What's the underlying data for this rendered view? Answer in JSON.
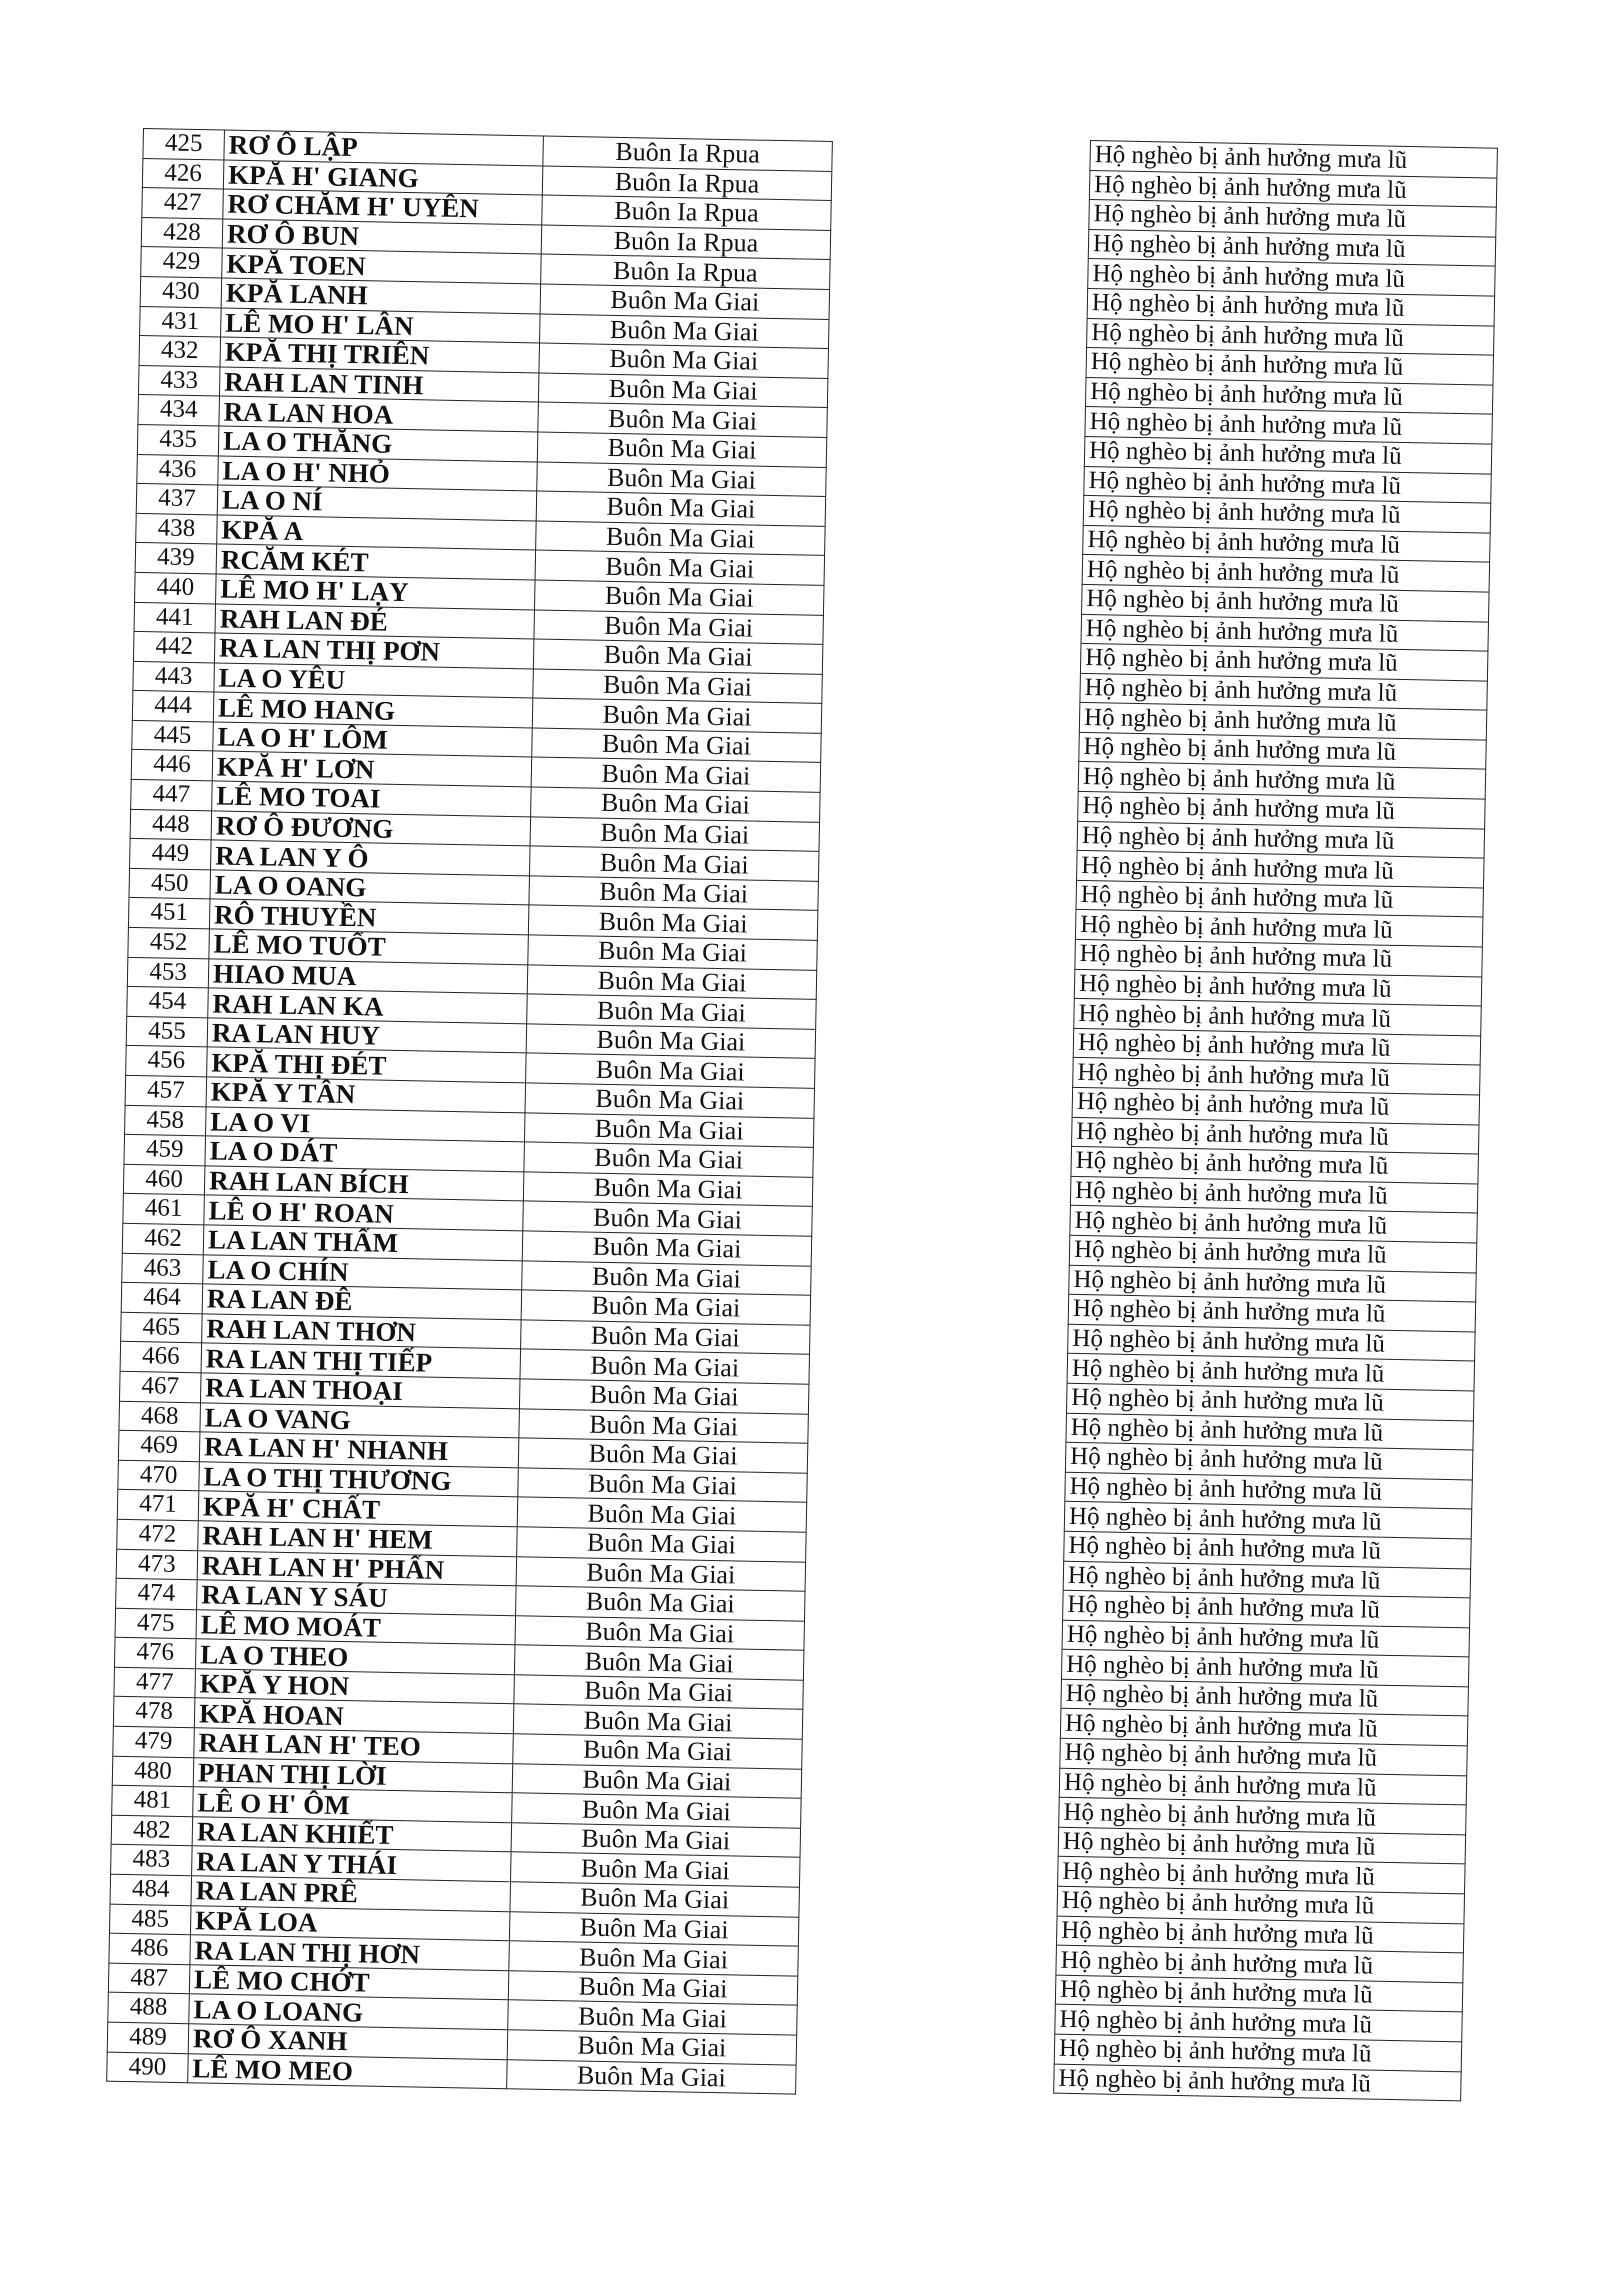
{
  "rows": [
    {
      "no": "425",
      "name": "RƠ Ô LẬP",
      "village": "Buôn Ia Rpua"
    },
    {
      "no": "426",
      "name": "KPĂ H' GIANG",
      "village": "Buôn Ia Rpua"
    },
    {
      "no": "427",
      "name": "RƠ CHĂM H' UYÊN",
      "village": "Buôn Ia Rpua"
    },
    {
      "no": "428",
      "name": "RƠ Ô BUN",
      "village": "Buôn Ia Rpua"
    },
    {
      "no": "429",
      "name": "KPĂ TOEN",
      "village": "Buôn Ia Rpua"
    },
    {
      "no": "430",
      "name": "KPĂ LANH",
      "village": "Buôn Ma Giai"
    },
    {
      "no": "431",
      "name": "LÊ MO H' LÂN",
      "village": "Buôn Ma Giai"
    },
    {
      "no": "432",
      "name": "KPĂ THỊ TRIÊN",
      "village": "Buôn Ma Giai"
    },
    {
      "no": "433",
      "name": "RAH LAN TINH",
      "village": "Buôn Ma Giai"
    },
    {
      "no": "434",
      "name": "RA LAN HOA",
      "village": "Buôn Ma Giai"
    },
    {
      "no": "435",
      "name": "LA O THĂNG",
      "village": "Buôn Ma Giai"
    },
    {
      "no": "436",
      "name": "LA O H' NHỎ",
      "village": "Buôn Ma Giai"
    },
    {
      "no": "437",
      "name": "LA O NÍ",
      "village": "Buôn Ma Giai"
    },
    {
      "no": "438",
      "name": "KPĂ A",
      "village": "Buôn Ma Giai"
    },
    {
      "no": "439",
      "name": "RCĂM KÉT",
      "village": "Buôn Ma Giai"
    },
    {
      "no": "440",
      "name": "LÊ MO H' LẠY",
      "village": "Buôn Ma Giai"
    },
    {
      "no": "441",
      "name": "RAH LAN ĐÉ",
      "village": "Buôn Ma Giai"
    },
    {
      "no": "442",
      "name": "RA LAN THỊ PƠN",
      "village": "Buôn Ma Giai"
    },
    {
      "no": "443",
      "name": "LA O YÊU",
      "village": "Buôn Ma Giai"
    },
    {
      "no": "444",
      "name": "LÊ MO HANG",
      "village": "Buôn Ma Giai"
    },
    {
      "no": "445",
      "name": "LA O H' LÔM",
      "village": "Buôn Ma Giai"
    },
    {
      "no": "446",
      "name": "KPĂ H' LƠN",
      "village": "Buôn Ma Giai"
    },
    {
      "no": "447",
      "name": "LÊ MO TOAI",
      "village": "Buôn Ma Giai"
    },
    {
      "no": "448",
      "name": "RƠ Ô ĐƯƠNG",
      "village": "Buôn Ma Giai"
    },
    {
      "no": "449",
      "name": "RA LAN Y Ô",
      "village": "Buôn Ma Giai"
    },
    {
      "no": "450",
      "name": "LA O OANG",
      "village": "Buôn Ma Giai"
    },
    {
      "no": "451",
      "name": "RÔ THUYỀN",
      "village": "Buôn Ma Giai"
    },
    {
      "no": "452",
      "name": "LÊ MO TUỐT",
      "village": "Buôn Ma Giai"
    },
    {
      "no": "453",
      "name": "HIAO MUA",
      "village": "Buôn Ma Giai"
    },
    {
      "no": "454",
      "name": "RAH LAN KA",
      "village": "Buôn Ma Giai"
    },
    {
      "no": "455",
      "name": "RA LAN HUY",
      "village": "Buôn Ma Giai"
    },
    {
      "no": "456",
      "name": "KPĂ THỊ ĐÉT",
      "village": "Buôn Ma Giai"
    },
    {
      "no": "457",
      "name": "KPĂ Y TÂN",
      "village": "Buôn Ma Giai"
    },
    {
      "no": "458",
      "name": "LA O VI",
      "village": "Buôn Ma Giai"
    },
    {
      "no": "459",
      "name": "LA O DÁT",
      "village": "Buôn Ma Giai"
    },
    {
      "no": "460",
      "name": "RAH LAN BÍCH",
      "village": "Buôn Ma Giai"
    },
    {
      "no": "461",
      "name": "LÊ O H' ROAN",
      "village": "Buôn Ma Giai"
    },
    {
      "no": "462",
      "name": "LA LAN THẨM",
      "village": "Buôn Ma Giai"
    },
    {
      "no": "463",
      "name": "LA O CHÍN",
      "village": "Buôn Ma Giai"
    },
    {
      "no": "464",
      "name": "RA LAN ĐÊ",
      "village": "Buôn Ma Giai"
    },
    {
      "no": "465",
      "name": "RAH LAN THƠN",
      "village": "Buôn Ma Giai"
    },
    {
      "no": "466",
      "name": "RA LAN THỊ TIẾP",
      "village": "Buôn Ma Giai"
    },
    {
      "no": "467",
      "name": "RA LAN THOẠI",
      "village": "Buôn Ma Giai"
    },
    {
      "no": "468",
      "name": "LA O VANG",
      "village": "Buôn Ma Giai"
    },
    {
      "no": "469",
      "name": "RA LAN H' NHANH",
      "village": "Buôn Ma Giai"
    },
    {
      "no": "470",
      "name": "LA O THỊ THƯƠNG",
      "village": "Buôn Ma Giai"
    },
    {
      "no": "471",
      "name": "KPĂ H' CHẤT",
      "village": "Buôn Ma Giai"
    },
    {
      "no": "472",
      "name": "RAH LAN H' HEM",
      "village": "Buôn Ma Giai"
    },
    {
      "no": "473",
      "name": "RAH LAN H' PHẤN",
      "village": "Buôn Ma Giai"
    },
    {
      "no": "474",
      "name": "RA LAN Y SÁU",
      "village": "Buôn Ma Giai"
    },
    {
      "no": "475",
      "name": "LÊ MO MOÁT",
      "village": "Buôn Ma Giai"
    },
    {
      "no": "476",
      "name": "LA O THEO",
      "village": "Buôn Ma Giai"
    },
    {
      "no": "477",
      "name": "KPĂ Y HON",
      "village": "Buôn Ma Giai"
    },
    {
      "no": "478",
      "name": "KPĂ HOAN",
      "village": "Buôn Ma Giai"
    },
    {
      "no": "479",
      "name": "RAH LAN H' TEO",
      "village": "Buôn Ma Giai"
    },
    {
      "no": "480",
      "name": "PHAN THỊ LỜI",
      "village": "Buôn Ma Giai"
    },
    {
      "no": "481",
      "name": "LÊ O H' ÔM",
      "village": "Buôn Ma Giai"
    },
    {
      "no": "482",
      "name": "RA LAN KHIẾT",
      "village": "Buôn Ma Giai"
    },
    {
      "no": "483",
      "name": "RA LAN Y THÁI",
      "village": "Buôn Ma Giai"
    },
    {
      "no": "484",
      "name": "RA LAN PRÊ",
      "village": "Buôn Ma Giai"
    },
    {
      "no": "485",
      "name": "KPĂ LOA",
      "village": "Buôn Ma Giai"
    },
    {
      "no": "486",
      "name": "RA LAN THỊ HƠN",
      "village": "Buôn Ma Giai"
    },
    {
      "no": "487",
      "name": "LÊ MO CHỚT",
      "village": "Buôn Ma Giai"
    },
    {
      "no": "488",
      "name": "LA O LOANG",
      "village": "Buôn Ma Giai"
    },
    {
      "no": "489",
      "name": "RƠ Ô XANH",
      "village": "Buôn Ma Giai"
    },
    {
      "no": "490",
      "name": "LÊ MO MEO",
      "village": "Buôn Ma Giai"
    }
  ],
  "status_column": [
    "Hộ nghèo bị ảnh hưởng mưa lũ",
    "Hộ nghèo bị ảnh hưởng mưa lũ",
    "Hộ nghèo bị ảnh hưởng mưa lũ",
    "Hộ nghèo bị ảnh hưởng mưa lũ",
    "Hộ nghèo bị ảnh hưởng mưa lũ",
    "Hộ nghèo bị ảnh hưởng mưa lũ",
    "Hộ nghèo bị ảnh hưởng mưa lũ",
    "Hộ nghèo bị ảnh hưởng mưa lũ",
    "Hộ nghèo bị ảnh hưởng mưa lũ",
    "Hộ nghèo bị ảnh hưởng mưa lũ",
    "Hộ nghèo bị ảnh hưởng mưa lũ",
    "Hộ nghèo bị ảnh hưởng mưa lũ",
    "Hộ nghèo bị ảnh hưởng mưa lũ",
    "Hộ nghèo bị ảnh hưởng mưa lũ",
    "Hộ nghèo bị ảnh hưởng mưa lũ",
    "Hộ nghèo bị ảnh hưởng mưa lũ",
    "Hộ nghèo bị ảnh hưởng mưa lũ",
    "Hộ nghèo bị ảnh hưởng mưa lũ",
    "Hộ nghèo bị ảnh hưởng mưa lũ",
    "Hộ nghèo bị ảnh hưởng mưa lũ",
    "Hộ nghèo bị ảnh hưởng mưa lũ",
    "Hộ nghèo bị ảnh hưởng mưa lũ",
    "Hộ nghèo bị ảnh hưởng mưa lũ",
    "Hộ nghèo bị ảnh hưởng mưa lũ",
    "Hộ nghèo bị ảnh hưởng mưa lũ",
    "Hộ nghèo bị ảnh hưởng mưa lũ",
    "Hộ nghèo bị ảnh hưởng mưa lũ",
    "Hộ nghèo bị ảnh hưởng mưa lũ",
    "Hộ nghèo bị ảnh hưởng mưa lũ",
    "Hộ nghèo bị ảnh hưởng mưa lũ",
    "Hộ nghèo bị ảnh hưởng mưa lũ",
    "Hộ nghèo bị ảnh hưởng mưa lũ",
    "Hộ nghèo bị ảnh hưởng mưa lũ",
    "Hộ nghèo bị ảnh hưởng mưa lũ",
    "Hộ nghèo bị ảnh hưởng mưa lũ",
    "Hộ nghèo bị ảnh hưởng mưa lũ",
    "Hộ nghèo bị ảnh hưởng mưa lũ",
    "Hộ nghèo bị ảnh hưởng mưa lũ",
    "Hộ nghèo bị ảnh hưởng mưa lũ",
    "Hộ nghèo bị ảnh hưởng mưa lũ",
    "Hộ nghèo bị ảnh hưởng mưa lũ",
    "Hộ nghèo bị ảnh hưởng mưa lũ",
    "Hộ nghèo bị ảnh hưởng mưa lũ",
    "Hộ nghèo bị ảnh hưởng mưa lũ",
    "Hộ nghèo bị ảnh hưởng mưa lũ",
    "Hộ nghèo bị ảnh hưởng mưa lũ",
    "Hộ nghèo bị ảnh hưởng mưa lũ",
    "Hộ nghèo bị ảnh hưởng mưa lũ",
    "Hộ nghèo bị ảnh hưởng mưa lũ",
    "Hộ nghèo bị ảnh hưởng mưa lũ",
    "Hộ nghèo bị ảnh hưởng mưa lũ",
    "Hộ nghèo bị ảnh hưởng mưa lũ",
    "Hộ nghèo bị ảnh hưởng mưa lũ",
    "Hộ nghèo bị ảnh hưởng mưa lũ",
    "Hộ nghèo bị ảnh hưởng mưa lũ",
    "Hộ nghèo bị ảnh hưởng mưa lũ",
    "Hộ nghèo bị ảnh hưởng mưa lũ",
    "Hộ nghèo bị ảnh hưởng mưa lũ",
    "Hộ nghèo bị ảnh hưởng mưa lũ",
    "Hộ nghèo bị ảnh hưởng mưa lũ",
    "Hộ nghèo bị ảnh hưởng mưa lũ",
    "Hộ nghèo bị ảnh hưởng mưa lũ",
    "Hộ nghèo bị ảnh hưởng mưa lũ",
    "Hộ nghèo bị ảnh hưởng mưa lũ",
    "Hộ nghèo bị ảnh hưởng mưa lũ",
    "Hộ nghèo bị ảnh hưởng mưa lũ"
  ]
}
